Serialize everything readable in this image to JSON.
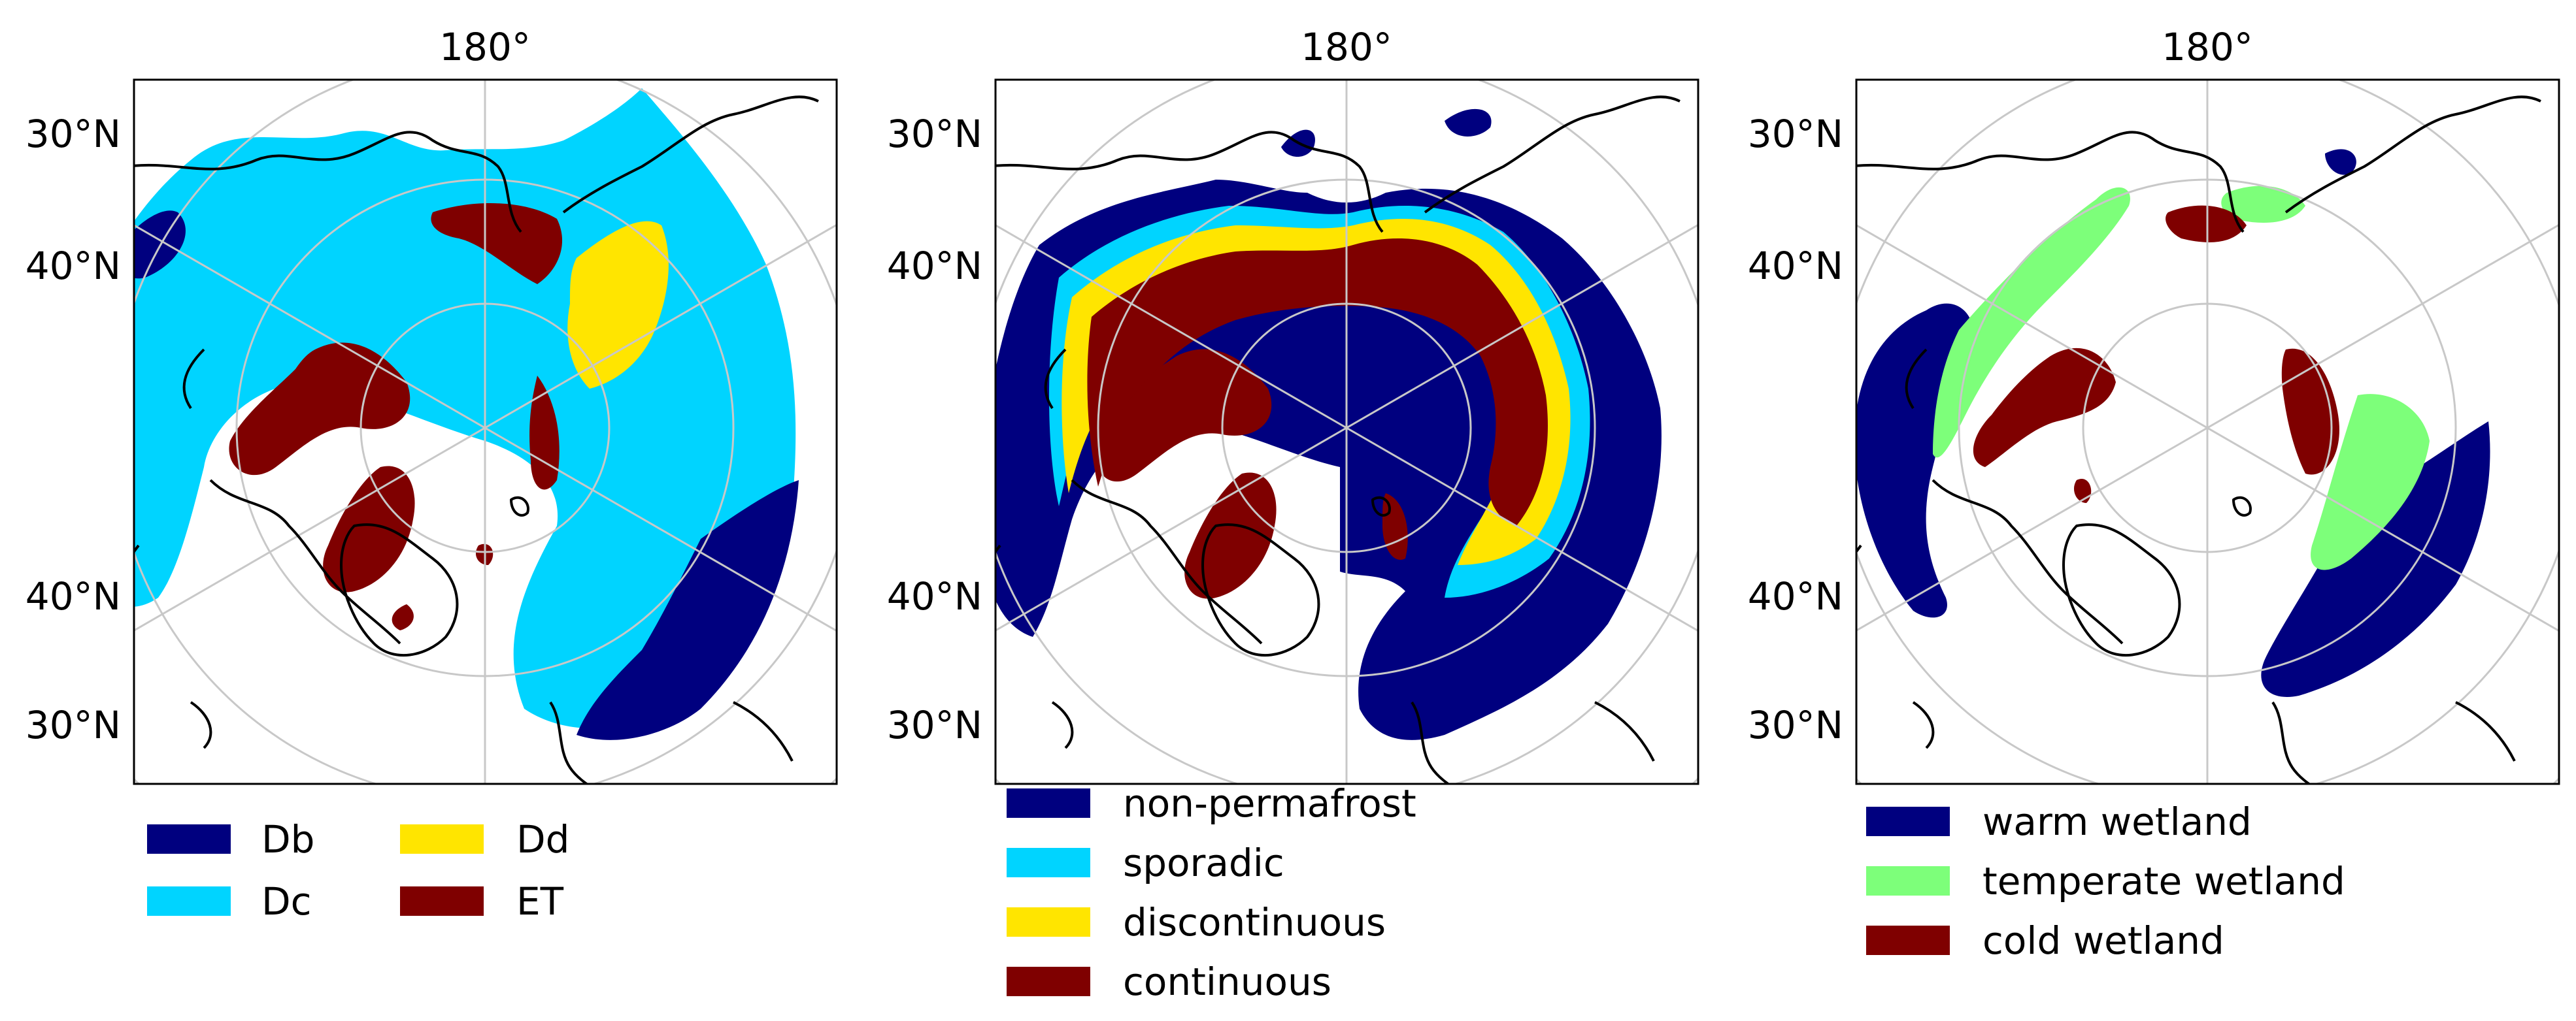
{
  "panels": [
    {
      "id": "koppen",
      "top_label": "180°",
      "lat_labels": [
        "30°N",
        "40°N",
        "40°N",
        "30°N"
      ],
      "legend": [
        {
          "label": "Db",
          "color": "#00007f"
        },
        {
          "label": "Dd",
          "color": "#ffe500"
        },
        {
          "label": "Dc",
          "color": "#00d4ff"
        },
        {
          "label": "ET",
          "color": "#7f0000"
        }
      ]
    },
    {
      "id": "permafrost",
      "top_label": "180°",
      "lat_labels": [
        "30°N",
        "40°N",
        "40°N",
        "30°N"
      ],
      "legend": [
        {
          "label": "non-permafrost",
          "color": "#00007f"
        },
        {
          "label": "sporadic",
          "color": "#00d4ff"
        },
        {
          "label": "discontinuous",
          "color": "#ffe500"
        },
        {
          "label": "continuous",
          "color": "#7f0000"
        }
      ]
    },
    {
      "id": "wetland",
      "top_label": "180°",
      "lat_labels": [
        "30°N",
        "40°N",
        "40°N",
        "30°N"
      ],
      "legend": [
        {
          "label": "warm wetland",
          "color": "#00007f"
        },
        {
          "label": "temperate wetland",
          "color": "#7dff7a"
        },
        {
          "label": "cold wetland",
          "color": "#7f0000"
        }
      ]
    }
  ]
}
